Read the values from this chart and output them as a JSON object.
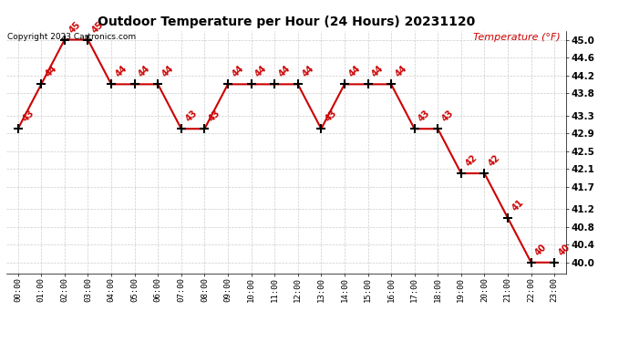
{
  "title": "Outdoor Temperature per Hour (24 Hours) 20231120",
  "copyright": "Copyright 2023 Cartronics.com",
  "ylabel": "Temperature (°F)",
  "hours": [
    "00:00",
    "01:00",
    "02:00",
    "03:00",
    "04:00",
    "05:00",
    "06:00",
    "07:00",
    "08:00",
    "09:00",
    "10:00",
    "11:00",
    "12:00",
    "13:00",
    "14:00",
    "15:00",
    "16:00",
    "17:00",
    "18:00",
    "19:00",
    "20:00",
    "21:00",
    "22:00",
    "23:00"
  ],
  "temperatures": [
    43,
    44,
    45,
    45,
    44,
    44,
    44,
    43,
    43,
    44,
    44,
    44,
    44,
    43,
    44,
    44,
    44,
    43,
    43,
    42,
    42,
    41,
    40,
    40
  ],
  "line_color": "#cc0000",
  "marker_color": "#000000",
  "label_color": "#cc0000",
  "title_color": "#000000",
  "copyright_color": "#000000",
  "ylabel_color": "#cc0000",
  "ytick_color": "#000000",
  "xtick_color": "#000000",
  "background_color": "#ffffff",
  "grid_color": "#cccccc",
  "ylim_min": 39.75,
  "ylim_max": 45.2,
  "yticks": [
    40.0,
    40.4,
    40.8,
    41.2,
    41.7,
    42.1,
    42.5,
    42.9,
    43.3,
    43.8,
    44.2,
    44.6,
    45.0
  ]
}
